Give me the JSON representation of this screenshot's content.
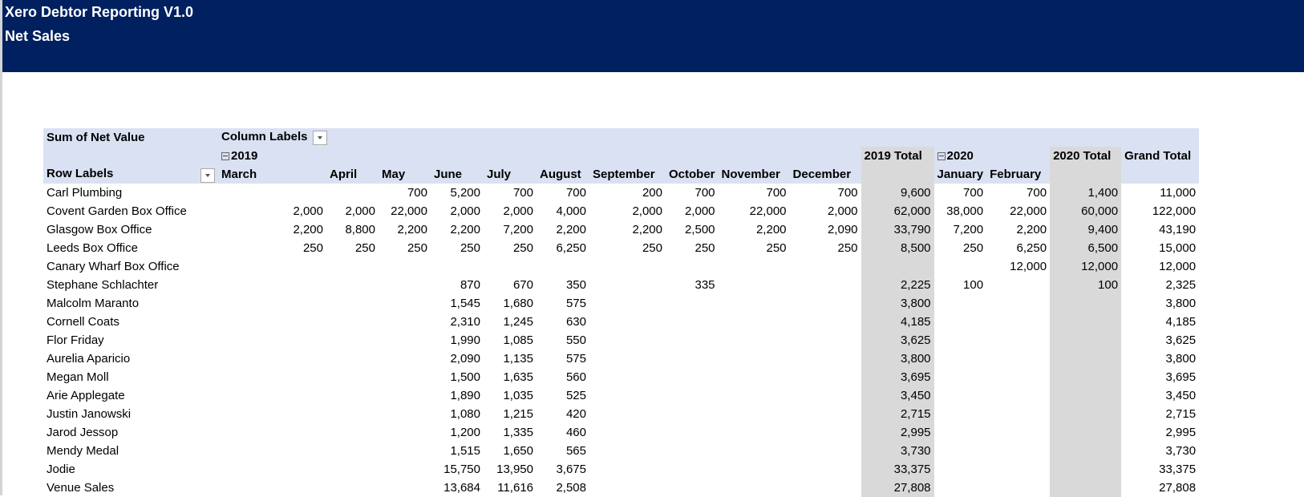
{
  "header": {
    "title": "Xero Debtor Reporting V1.0",
    "subtitle": "Net Sales"
  },
  "pivot": {
    "value_label": "Sum of Net Value",
    "column_labels": "Column Labels",
    "row_labels": "Row Labels",
    "years": [
      {
        "year": "2019",
        "months": [
          "March",
          "April",
          "May",
          "June",
          "July",
          "August",
          "September",
          "October",
          "November",
          "December"
        ],
        "total": "2019 Total"
      },
      {
        "year": "2020",
        "months": [
          "January",
          "February"
        ],
        "total": "2020 Total"
      }
    ],
    "grand_total": "Grand Total",
    "rows": [
      {
        "label": "Carl Plumbing",
        "cells": [
          null,
          null,
          "700",
          "5,200",
          "700",
          "700",
          "200",
          "700",
          "700",
          "700",
          "9,600",
          "700",
          "700",
          "1,400",
          "11,000"
        ]
      },
      {
        "label": "Covent Garden Box Office",
        "cells": [
          "2,000",
          "2,000",
          "22,000",
          "2,000",
          "2,000",
          "4,000",
          "2,000",
          "2,000",
          "22,000",
          "2,000",
          "62,000",
          "38,000",
          "22,000",
          "60,000",
          "122,000"
        ]
      },
      {
        "label": "Glasgow Box Office",
        "cells": [
          "2,200",
          "8,800",
          "2,200",
          "2,200",
          "7,200",
          "2,200",
          "2,200",
          "2,500",
          "2,200",
          "2,090",
          "33,790",
          "7,200",
          "2,200",
          "9,400",
          "43,190"
        ]
      },
      {
        "label": "Leeds Box Office",
        "cells": [
          "250",
          "250",
          "250",
          "250",
          "250",
          "6,250",
          "250",
          "250",
          "250",
          "250",
          "8,500",
          "250",
          "6,250",
          "6,500",
          "15,000"
        ]
      },
      {
        "label": "Canary Wharf Box Office",
        "cells": [
          null,
          null,
          null,
          null,
          null,
          null,
          null,
          null,
          null,
          null,
          null,
          null,
          "12,000",
          "12,000",
          "12,000"
        ]
      },
      {
        "label": "Stephane Schlachter",
        "cells": [
          null,
          null,
          null,
          "870",
          "670",
          "350",
          null,
          "335",
          null,
          null,
          "2,225",
          "100",
          null,
          "100",
          "2,325"
        ]
      },
      {
        "label": "Malcolm Maranto",
        "cells": [
          null,
          null,
          null,
          "1,545",
          "1,680",
          "575",
          null,
          null,
          null,
          null,
          "3,800",
          null,
          null,
          null,
          "3,800"
        ]
      },
      {
        "label": "Cornell Coats",
        "cells": [
          null,
          null,
          null,
          "2,310",
          "1,245",
          "630",
          null,
          null,
          null,
          null,
          "4,185",
          null,
          null,
          null,
          "4,185"
        ]
      },
      {
        "label": "Flor Friday",
        "cells": [
          null,
          null,
          null,
          "1,990",
          "1,085",
          "550",
          null,
          null,
          null,
          null,
          "3,625",
          null,
          null,
          null,
          "3,625"
        ]
      },
      {
        "label": "Aurelia Aparicio",
        "cells": [
          null,
          null,
          null,
          "2,090",
          "1,135",
          "575",
          null,
          null,
          null,
          null,
          "3,800",
          null,
          null,
          null,
          "3,800"
        ]
      },
      {
        "label": "Megan Moll",
        "cells": [
          null,
          null,
          null,
          "1,500",
          "1,635",
          "560",
          null,
          null,
          null,
          null,
          "3,695",
          null,
          null,
          null,
          "3,695"
        ]
      },
      {
        "label": "Arie Applegate",
        "cells": [
          null,
          null,
          null,
          "1,890",
          "1,035",
          "525",
          null,
          null,
          null,
          null,
          "3,450",
          null,
          null,
          null,
          "3,450"
        ]
      },
      {
        "label": "Justin Janowski",
        "cells": [
          null,
          null,
          null,
          "1,080",
          "1,215",
          "420",
          null,
          null,
          null,
          null,
          "2,715",
          null,
          null,
          null,
          "2,715"
        ]
      },
      {
        "label": "Jarod Jessop",
        "cells": [
          null,
          null,
          null,
          "1,200",
          "1,335",
          "460",
          null,
          null,
          null,
          null,
          "2,995",
          null,
          null,
          null,
          "2,995"
        ]
      },
      {
        "label": "Mendy Medal",
        "cells": [
          null,
          null,
          null,
          "1,515",
          "1,650",
          "565",
          null,
          null,
          null,
          null,
          "3,730",
          null,
          null,
          null,
          "3,730"
        ]
      },
      {
        "label": "Jodie",
        "cells": [
          null,
          null,
          null,
          "15,750",
          "13,950",
          "3,675",
          null,
          null,
          null,
          null,
          "33,375",
          null,
          null,
          null,
          "33,375"
        ]
      },
      {
        "label": "Venue Sales",
        "cells": [
          null,
          null,
          null,
          "13,684",
          "11,616",
          "2,508",
          null,
          null,
          null,
          null,
          "27,808",
          null,
          null,
          null,
          "27,808"
        ]
      }
    ]
  }
}
